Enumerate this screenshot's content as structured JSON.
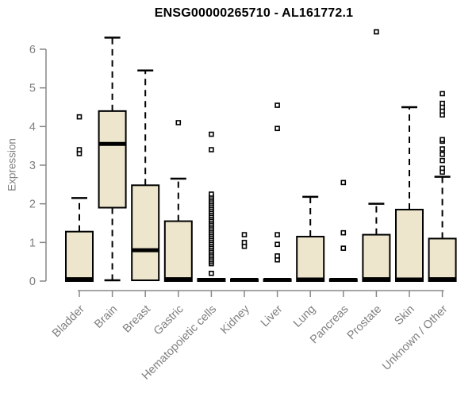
{
  "chart_data": {
    "type": "boxplot",
    "title": "ENSG00000265710 - AL161772.1",
    "ylabel": "Expression",
    "xlabel": "",
    "ylim": [
      0,
      6
    ],
    "y_ticks": [
      0,
      1,
      2,
      3,
      4,
      5,
      6
    ],
    "grid": "off",
    "legend": "none",
    "whisker_style": "dashed",
    "outlier_marker": "open-square",
    "categories": [
      "Bladder",
      "Brain",
      "Breast",
      "Gastric",
      "Hematopoietic cells",
      "Kidney",
      "Liver",
      "Lung",
      "Pancreas",
      "Prostate",
      "Skin",
      "Unknown / Other"
    ],
    "boxes": [
      {
        "category": "Bladder",
        "whisker_low": 0,
        "q1": 0,
        "median": 0.05,
        "q3": 1.28,
        "whisker_high": 2.15,
        "outliers": [
          3.3,
          3.4,
          4.25
        ]
      },
      {
        "category": "Brain",
        "whisker_low": 0.02,
        "q1": 1.9,
        "median": 3.55,
        "q3": 4.4,
        "whisker_high": 6.3,
        "outliers": []
      },
      {
        "category": "Breast",
        "whisker_low": 0,
        "q1": 0.02,
        "median": 0.8,
        "q3": 2.48,
        "whisker_high": 5.45,
        "outliers": []
      },
      {
        "category": "Gastric",
        "whisker_low": 0,
        "q1": 0,
        "median": 0.05,
        "q3": 1.55,
        "whisker_high": 2.65,
        "outliers": [
          4.1
        ]
      },
      {
        "category": "Hematopoietic cells",
        "whisker_low": 0,
        "q1": 0,
        "median": 0.03,
        "q3": 0.06,
        "whisker_high": 0.06,
        "outliers": [
          0.2,
          0.45,
          0.5,
          0.55,
          0.6,
          0.65,
          0.7,
          0.75,
          0.8,
          0.85,
          0.9,
          0.95,
          1.0,
          1.05,
          1.1,
          1.15,
          1.2,
          1.25,
          1.3,
          1.35,
          1.4,
          1.45,
          1.5,
          1.55,
          1.6,
          1.65,
          1.7,
          1.75,
          1.8,
          1.85,
          1.9,
          1.95,
          2.0,
          2.05,
          2.1,
          2.15,
          2.2,
          2.25,
          3.4,
          3.8
        ]
      },
      {
        "category": "Kidney",
        "whisker_low": 0,
        "q1": 0,
        "median": 0.03,
        "q3": 0.05,
        "whisker_high": 0.05,
        "outliers": [
          0.9,
          1.0,
          1.2
        ]
      },
      {
        "category": "Liver",
        "whisker_low": 0,
        "q1": 0,
        "median": 0.03,
        "q3": 0.05,
        "whisker_high": 0.05,
        "outliers": [
          0.55,
          0.65,
          0.95,
          1.2,
          3.95,
          4.55
        ]
      },
      {
        "category": "Lung",
        "whisker_low": 0,
        "q1": 0,
        "median": 0.04,
        "q3": 1.15,
        "whisker_high": 2.18,
        "outliers": []
      },
      {
        "category": "Pancreas",
        "whisker_low": 0,
        "q1": 0,
        "median": 0.03,
        "q3": 0.05,
        "whisker_high": 0.05,
        "outliers": [
          0.85,
          1.25,
          2.55
        ]
      },
      {
        "category": "Prostate",
        "whisker_low": 0,
        "q1": 0,
        "median": 0.05,
        "q3": 1.2,
        "whisker_high": 2.0,
        "outliers": [
          6.45
        ]
      },
      {
        "category": "Skin",
        "whisker_low": 0,
        "q1": 0,
        "median": 0.04,
        "q3": 1.85,
        "whisker_high": 4.5,
        "outliers": []
      },
      {
        "category": "Unknown / Other",
        "whisker_low": 0,
        "q1": 0,
        "median": 0.05,
        "q3": 1.1,
        "whisker_high": 2.7,
        "outliers": [
          2.82,
          2.92,
          3.12,
          3.28,
          3.42,
          3.62,
          3.66,
          4.3,
          4.4,
          4.5,
          4.6,
          4.85
        ]
      }
    ],
    "colors": {
      "box_fill": "#EDE6CC",
      "box_stroke": "#000000",
      "median": "#000000",
      "axis_line": "#888888",
      "tick_label": "#7f7f7f",
      "title": "#000000"
    }
  }
}
